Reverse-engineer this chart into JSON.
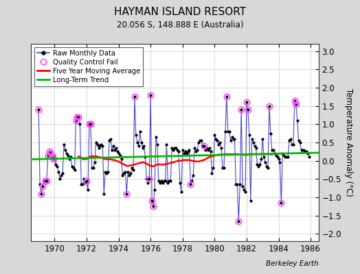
{
  "title": "HAYMAN ISLAND RESORT",
  "subtitle": "20.056 S, 148.888 E (Australia)",
  "ylabel": "Temperature Anomaly (°C)",
  "watermark": "Berkeley Earth",
  "ylim": [
    -2.2,
    3.2
  ],
  "xlim": [
    1968.5,
    1986.5
  ],
  "yticks": [
    -2,
    -1.5,
    -1,
    -0.5,
    0,
    0.5,
    1,
    1.5,
    2,
    2.5,
    3
  ],
  "xticks": [
    1970,
    1972,
    1974,
    1976,
    1978,
    1980,
    1982,
    1984,
    1986
  ],
  "bg_color": "#d8d8d8",
  "plot_bg_color": "#ffffff",
  "raw_line_color": "#4444cc",
  "raw_dot_color": "#000000",
  "qc_color": "#ff44ff",
  "moving_avg_color": "#ff0000",
  "trend_color": "#00bb00",
  "raw_data": [
    [
      1969.0,
      1.4
    ],
    [
      1969.083,
      -0.65
    ],
    [
      1969.167,
      -0.9
    ],
    [
      1969.25,
      -0.7
    ],
    [
      1969.333,
      -0.55
    ],
    [
      1969.417,
      -0.55
    ],
    [
      1969.5,
      -0.55
    ],
    [
      1969.583,
      0.15
    ],
    [
      1969.667,
      0.25
    ],
    [
      1969.75,
      0.2
    ],
    [
      1969.833,
      0.1
    ],
    [
      1969.917,
      0.05
    ],
    [
      1970.0,
      0.15
    ],
    [
      1970.083,
      -0.1
    ],
    [
      1970.167,
      -0.15
    ],
    [
      1970.25,
      -0.3
    ],
    [
      1970.333,
      -0.5
    ],
    [
      1970.417,
      -0.4
    ],
    [
      1970.5,
      -0.35
    ],
    [
      1970.583,
      0.45
    ],
    [
      1970.667,
      0.3
    ],
    [
      1970.75,
      0.2
    ],
    [
      1970.833,
      0.15
    ],
    [
      1970.917,
      0.05
    ],
    [
      1971.0,
      0.1
    ],
    [
      1971.083,
      -0.15
    ],
    [
      1971.167,
      -0.2
    ],
    [
      1971.25,
      -0.25
    ],
    [
      1971.333,
      1.1
    ],
    [
      1971.417,
      1.2
    ],
    [
      1971.5,
      1.2
    ],
    [
      1971.583,
      1.0
    ],
    [
      1971.667,
      -0.65
    ],
    [
      1971.75,
      -0.65
    ],
    [
      1971.833,
      -0.5
    ],
    [
      1971.917,
      -0.6
    ],
    [
      1972.0,
      -0.55
    ],
    [
      1972.083,
      -0.8
    ],
    [
      1972.167,
      1.0
    ],
    [
      1972.25,
      1.0
    ],
    [
      1972.333,
      -0.2
    ],
    [
      1972.417,
      -0.2
    ],
    [
      1972.5,
      -0.05
    ],
    [
      1972.583,
      0.5
    ],
    [
      1972.667,
      0.45
    ],
    [
      1972.75,
      0.35
    ],
    [
      1972.833,
      0.4
    ],
    [
      1972.917,
      0.45
    ],
    [
      1973.0,
      0.4
    ],
    [
      1973.083,
      -0.9
    ],
    [
      1973.167,
      -0.3
    ],
    [
      1973.25,
      -0.35
    ],
    [
      1973.333,
      -0.3
    ],
    [
      1973.417,
      0.55
    ],
    [
      1973.5,
      0.6
    ],
    [
      1973.583,
      0.3
    ],
    [
      1973.667,
      0.4
    ],
    [
      1973.75,
      0.3
    ],
    [
      1973.833,
      0.35
    ],
    [
      1973.917,
      0.25
    ],
    [
      1974.0,
      0.2
    ],
    [
      1974.083,
      0.15
    ],
    [
      1974.167,
      0.05
    ],
    [
      1974.25,
      -0.4
    ],
    [
      1974.333,
      -0.35
    ],
    [
      1974.417,
      -0.3
    ],
    [
      1974.5,
      -0.9
    ],
    [
      1974.583,
      -0.3
    ],
    [
      1974.667,
      -0.4
    ],
    [
      1974.75,
      -0.35
    ],
    [
      1974.833,
      -0.2
    ],
    [
      1974.917,
      -0.25
    ],
    [
      1975.0,
      1.75
    ],
    [
      1975.083,
      0.7
    ],
    [
      1975.167,
      0.5
    ],
    [
      1975.25,
      0.4
    ],
    [
      1975.333,
      0.8
    ],
    [
      1975.417,
      0.5
    ],
    [
      1975.5,
      0.35
    ],
    [
      1975.583,
      0.4
    ],
    [
      1975.667,
      0.1
    ],
    [
      1975.75,
      -0.5
    ],
    [
      1975.833,
      -0.6
    ],
    [
      1975.917,
      -0.5
    ],
    [
      1976.0,
      1.8
    ],
    [
      1976.083,
      -1.1
    ],
    [
      1976.167,
      -1.25
    ],
    [
      1976.25,
      -0.8
    ],
    [
      1976.333,
      0.65
    ],
    [
      1976.417,
      0.45
    ],
    [
      1976.5,
      -0.55
    ],
    [
      1976.583,
      -0.6
    ],
    [
      1976.667,
      -0.55
    ],
    [
      1976.75,
      -0.6
    ],
    [
      1976.833,
      -0.55
    ],
    [
      1976.917,
      -0.55
    ],
    [
      1977.0,
      0.45
    ],
    [
      1977.083,
      -0.6
    ],
    [
      1977.167,
      -0.55
    ],
    [
      1977.25,
      -0.55
    ],
    [
      1977.333,
      0.35
    ],
    [
      1977.417,
      0.3
    ],
    [
      1977.5,
      0.35
    ],
    [
      1977.583,
      0.35
    ],
    [
      1977.667,
      0.3
    ],
    [
      1977.75,
      0.25
    ],
    [
      1977.833,
      -0.6
    ],
    [
      1977.917,
      -0.85
    ],
    [
      1978.0,
      0.3
    ],
    [
      1978.083,
      0.2
    ],
    [
      1978.167,
      0.25
    ],
    [
      1978.25,
      0.2
    ],
    [
      1978.333,
      0.25
    ],
    [
      1978.417,
      0.3
    ],
    [
      1978.5,
      -0.65
    ],
    [
      1978.583,
      -0.55
    ],
    [
      1978.667,
      -0.4
    ],
    [
      1978.75,
      0.35
    ],
    [
      1978.833,
      0.25
    ],
    [
      1978.917,
      0.3
    ],
    [
      1979.0,
      0.5
    ],
    [
      1979.083,
      0.55
    ],
    [
      1979.167,
      0.55
    ],
    [
      1979.25,
      0.4
    ],
    [
      1979.333,
      0.4
    ],
    [
      1979.417,
      0.3
    ],
    [
      1979.5,
      0.35
    ],
    [
      1979.583,
      0.3
    ],
    [
      1979.667,
      0.35
    ],
    [
      1979.75,
      0.25
    ],
    [
      1979.833,
      -0.35
    ],
    [
      1979.917,
      -0.2
    ],
    [
      1980.0,
      0.7
    ],
    [
      1980.083,
      0.6
    ],
    [
      1980.167,
      0.55
    ],
    [
      1980.25,
      0.45
    ],
    [
      1980.333,
      0.5
    ],
    [
      1980.417,
      0.35
    ],
    [
      1980.5,
      -0.2
    ],
    [
      1980.583,
      -0.2
    ],
    [
      1980.667,
      0.8
    ],
    [
      1980.75,
      1.75
    ],
    [
      1980.833,
      0.8
    ],
    [
      1980.917,
      0.8
    ],
    [
      1981.0,
      0.55
    ],
    [
      1981.083,
      0.65
    ],
    [
      1981.167,
      0.6
    ],
    [
      1981.25,
      0.6
    ],
    [
      1981.333,
      -0.65
    ],
    [
      1981.417,
      -0.65
    ],
    [
      1981.5,
      -1.65
    ],
    [
      1981.583,
      -0.65
    ],
    [
      1981.667,
      1.4
    ],
    [
      1981.75,
      -0.7
    ],
    [
      1981.833,
      -0.8
    ],
    [
      1981.917,
      -0.85
    ],
    [
      1982.0,
      1.6
    ],
    [
      1982.083,
      1.4
    ],
    [
      1982.167,
      0.7
    ],
    [
      1982.25,
      -1.1
    ],
    [
      1982.333,
      0.6
    ],
    [
      1982.417,
      0.5
    ],
    [
      1982.5,
      0.4
    ],
    [
      1982.583,
      0.35
    ],
    [
      1982.667,
      -0.1
    ],
    [
      1982.75,
      -0.15
    ],
    [
      1982.833,
      -0.1
    ],
    [
      1982.917,
      0.05
    ],
    [
      1983.0,
      0.6
    ],
    [
      1983.083,
      0.1
    ],
    [
      1983.167,
      -0.05
    ],
    [
      1983.25,
      -0.15
    ],
    [
      1983.333,
      -0.2
    ],
    [
      1983.417,
      1.5
    ],
    [
      1983.5,
      0.75
    ],
    [
      1983.583,
      0.3
    ],
    [
      1983.667,
      0.3
    ],
    [
      1983.75,
      0.2
    ],
    [
      1983.833,
      0.15
    ],
    [
      1983.917,
      0.1
    ],
    [
      1984.0,
      0.05
    ],
    [
      1984.083,
      -0.05
    ],
    [
      1984.167,
      -1.15
    ],
    [
      1984.25,
      0.2
    ],
    [
      1984.333,
      0.15
    ],
    [
      1984.417,
      0.1
    ],
    [
      1984.5,
      0.1
    ],
    [
      1984.583,
      0.1
    ],
    [
      1984.667,
      0.55
    ],
    [
      1984.75,
      0.6
    ],
    [
      1984.833,
      0.45
    ],
    [
      1984.917,
      0.45
    ],
    [
      1985.0,
      1.65
    ],
    [
      1985.083,
      1.55
    ],
    [
      1985.167,
      1.1
    ],
    [
      1985.25,
      0.55
    ],
    [
      1985.333,
      0.5
    ],
    [
      1985.417,
      0.3
    ],
    [
      1985.5,
      0.3
    ],
    [
      1985.583,
      0.3
    ],
    [
      1985.667,
      0.25
    ],
    [
      1985.75,
      0.25
    ],
    [
      1985.833,
      0.2
    ],
    [
      1985.917,
      0.1
    ]
  ],
  "qc_fail_points": [
    [
      1969.0,
      1.4
    ],
    [
      1969.167,
      -0.9
    ],
    [
      1969.25,
      -0.7
    ],
    [
      1969.417,
      -0.55
    ],
    [
      1969.5,
      -0.55
    ],
    [
      1969.583,
      0.15
    ],
    [
      1969.667,
      0.25
    ],
    [
      1969.75,
      0.2
    ],
    [
      1969.833,
      0.1
    ],
    [
      1969.917,
      0.05
    ],
    [
      1971.333,
      1.1
    ],
    [
      1971.417,
      1.2
    ],
    [
      1971.5,
      1.2
    ],
    [
      1972.0,
      -0.55
    ],
    [
      1972.167,
      1.0
    ],
    [
      1972.25,
      1.0
    ],
    [
      1974.5,
      -0.9
    ],
    [
      1975.0,
      1.75
    ],
    [
      1975.917,
      -0.5
    ],
    [
      1976.0,
      1.8
    ],
    [
      1976.083,
      -1.1
    ],
    [
      1976.167,
      -1.25
    ],
    [
      1978.5,
      -0.65
    ],
    [
      1979.333,
      0.4
    ],
    [
      1980.75,
      1.75
    ],
    [
      1981.5,
      -1.65
    ],
    [
      1981.667,
      1.4
    ],
    [
      1982.0,
      1.6
    ],
    [
      1982.083,
      1.4
    ],
    [
      1983.417,
      1.5
    ],
    [
      1984.167,
      -1.15
    ],
    [
      1985.0,
      1.65
    ],
    [
      1985.083,
      1.55
    ]
  ],
  "moving_avg": [
    [
      1971.5,
      0.12
    ],
    [
      1971.583,
      0.1
    ],
    [
      1971.667,
      0.08
    ],
    [
      1971.75,
      0.05
    ],
    [
      1971.833,
      0.04
    ],
    [
      1971.917,
      0.05
    ],
    [
      1972.0,
      0.05
    ],
    [
      1972.083,
      0.06
    ],
    [
      1972.167,
      0.1
    ],
    [
      1972.25,
      0.12
    ],
    [
      1972.333,
      0.12
    ],
    [
      1972.417,
      0.12
    ],
    [
      1972.5,
      0.11
    ],
    [
      1972.583,
      0.12
    ],
    [
      1972.667,
      0.12
    ],
    [
      1972.75,
      0.1
    ],
    [
      1972.833,
      0.1
    ],
    [
      1972.917,
      0.08
    ],
    [
      1973.0,
      0.08
    ],
    [
      1973.083,
      0.05
    ],
    [
      1973.167,
      0.05
    ],
    [
      1973.25,
      0.04
    ],
    [
      1973.333,
      0.04
    ],
    [
      1973.417,
      0.04
    ],
    [
      1973.5,
      0.04
    ],
    [
      1973.583,
      0.03
    ],
    [
      1973.667,
      0.02
    ],
    [
      1973.75,
      0.02
    ],
    [
      1973.833,
      0.0
    ],
    [
      1973.917,
      -0.01
    ],
    [
      1974.0,
      -0.02
    ],
    [
      1974.083,
      -0.04
    ],
    [
      1974.167,
      -0.06
    ],
    [
      1974.25,
      -0.08
    ],
    [
      1974.333,
      -0.1
    ],
    [
      1974.417,
      -0.12
    ],
    [
      1974.5,
      -0.14
    ],
    [
      1974.583,
      -0.14
    ],
    [
      1974.667,
      -0.14
    ],
    [
      1974.75,
      -0.13
    ],
    [
      1974.833,
      -0.12
    ],
    [
      1974.917,
      -0.11
    ],
    [
      1975.0,
      -0.1
    ],
    [
      1975.083,
      -0.09
    ],
    [
      1975.167,
      -0.08
    ],
    [
      1975.25,
      -0.07
    ],
    [
      1975.333,
      -0.06
    ],
    [
      1975.417,
      -0.05
    ],
    [
      1975.5,
      -0.04
    ],
    [
      1975.583,
      -0.05
    ],
    [
      1975.667,
      -0.06
    ],
    [
      1975.75,
      -0.08
    ],
    [
      1975.833,
      -0.1
    ],
    [
      1975.917,
      -0.12
    ],
    [
      1976.0,
      -0.14
    ],
    [
      1976.083,
      -0.15
    ],
    [
      1976.167,
      -0.15
    ],
    [
      1976.25,
      -0.14
    ],
    [
      1976.333,
      -0.12
    ],
    [
      1976.417,
      -0.1
    ],
    [
      1976.5,
      -0.1
    ],
    [
      1976.583,
      -0.1
    ],
    [
      1976.667,
      -0.1
    ],
    [
      1976.75,
      -0.1
    ],
    [
      1976.833,
      -0.1
    ],
    [
      1976.917,
      -0.1
    ],
    [
      1977.0,
      -0.09
    ],
    [
      1977.083,
      -0.08
    ],
    [
      1977.167,
      -0.07
    ],
    [
      1977.25,
      -0.06
    ],
    [
      1977.333,
      -0.05
    ],
    [
      1977.417,
      -0.04
    ],
    [
      1977.5,
      -0.03
    ],
    [
      1977.583,
      -0.02
    ],
    [
      1977.667,
      -0.01
    ],
    [
      1977.75,
      0.0
    ],
    [
      1977.833,
      0.0
    ],
    [
      1977.917,
      0.0
    ],
    [
      1978.0,
      0.01
    ],
    [
      1978.083,
      0.02
    ],
    [
      1978.167,
      0.02
    ],
    [
      1978.25,
      0.02
    ],
    [
      1978.333,
      0.02
    ],
    [
      1978.417,
      0.02
    ],
    [
      1978.5,
      0.01
    ],
    [
      1978.583,
      0.0
    ],
    [
      1978.667,
      -0.01
    ],
    [
      1978.75,
      -0.01
    ],
    [
      1978.833,
      -0.02
    ],
    [
      1978.917,
      -0.02
    ],
    [
      1979.0,
      -0.02
    ],
    [
      1979.083,
      -0.01
    ],
    [
      1979.167,
      0.0
    ],
    [
      1979.25,
      0.01
    ],
    [
      1979.333,
      0.02
    ],
    [
      1979.417,
      0.04
    ],
    [
      1979.5,
      0.06
    ],
    [
      1979.583,
      0.08
    ],
    [
      1979.667,
      0.1
    ],
    [
      1979.75,
      0.11
    ],
    [
      1979.833,
      0.12
    ],
    [
      1979.917,
      0.13
    ],
    [
      1980.0,
      0.14
    ],
    [
      1980.083,
      0.15
    ],
    [
      1980.167,
      0.16
    ],
    [
      1980.25,
      0.17
    ],
    [
      1980.333,
      0.17
    ],
    [
      1980.417,
      0.17
    ],
    [
      1980.5,
      0.17
    ],
    [
      1980.583,
      0.17
    ],
    [
      1980.667,
      0.18
    ],
    [
      1980.75,
      0.18
    ],
    [
      1980.833,
      0.18
    ],
    [
      1980.917,
      0.18
    ],
    [
      1981.0,
      0.18
    ],
    [
      1981.083,
      0.18
    ],
    [
      1981.167,
      0.18
    ],
    [
      1981.25,
      0.18
    ],
    [
      1981.333,
      0.18
    ],
    [
      1981.417,
      0.18
    ],
    [
      1981.5,
      0.18
    ],
    [
      1981.583,
      0.17
    ],
    [
      1981.667,
      0.17
    ],
    [
      1981.75,
      0.17
    ],
    [
      1981.833,
      0.16
    ],
    [
      1981.917,
      0.16
    ],
    [
      1982.0,
      0.16
    ],
    [
      1982.083,
      0.17
    ],
    [
      1982.167,
      0.17
    ],
    [
      1982.25,
      0.17
    ],
    [
      1982.333,
      0.18
    ],
    [
      1982.417,
      0.18
    ],
    [
      1982.5,
      0.18
    ],
    [
      1982.583,
      0.18
    ],
    [
      1982.667,
      0.18
    ],
    [
      1982.75,
      0.18
    ],
    [
      1982.833,
      0.18
    ],
    [
      1982.917,
      0.18
    ],
    [
      1983.0,
      0.18
    ],
    [
      1983.083,
      0.18
    ],
    [
      1983.167,
      0.18
    ],
    [
      1983.25,
      0.18
    ],
    [
      1983.333,
      0.18
    ],
    [
      1983.417,
      0.18
    ],
    [
      1983.5,
      0.18
    ],
    [
      1983.583,
      0.17
    ]
  ],
  "trend_line": [
    [
      1968.5,
      0.04
    ],
    [
      1986.5,
      0.22
    ]
  ]
}
